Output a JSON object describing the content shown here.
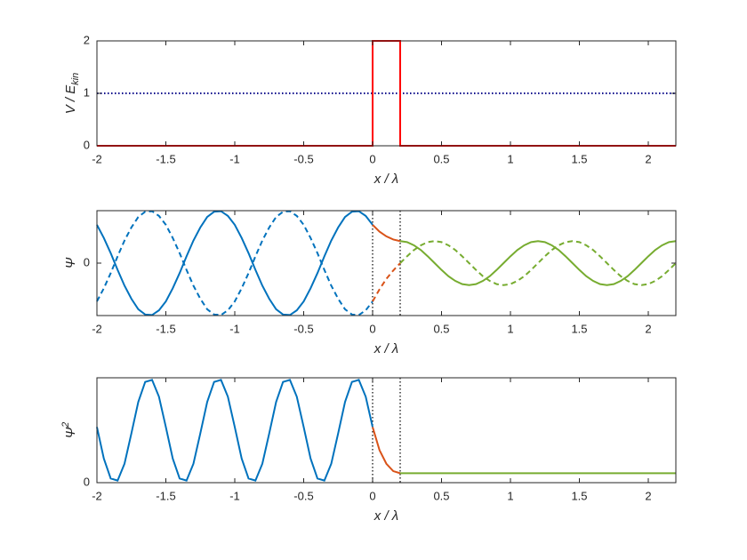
{
  "chart_data": [
    {
      "type": "line",
      "ylabel": [
        "V / E",
        "kin"
      ],
      "xlabel": "x / λ",
      "xlim": [
        -2,
        2.2
      ],
      "xticks": [
        -2,
        -1.5,
        -1,
        -0.5,
        0,
        0.5,
        1,
        1.5,
        2
      ],
      "ylim": [
        0,
        2
      ],
      "yticks": [
        0,
        1,
        2
      ],
      "series": [
        {
          "color": "#00008b",
          "style": "dotted",
          "x": [
            -2,
            2.2
          ],
          "values": [
            1,
            1
          ]
        },
        {
          "color": "#ff0000",
          "style": "solid",
          "x": [
            -2,
            0,
            0,
            0.2,
            0.2,
            2.2
          ],
          "values": [
            0,
            0,
            2,
            2,
            0,
            0
          ]
        }
      ]
    },
    {
      "type": "line",
      "ylabel": [
        "Ψ"
      ],
      "xlabel": "x / λ",
      "xlim": [
        -2,
        2.2
      ],
      "xticks": [
        -2,
        -1.5,
        -1,
        -0.5,
        0,
        0.5,
        1,
        1.5,
        2
      ],
      "ylim": [
        -1,
        1
      ],
      "yticks": [
        0
      ],
      "vlines": [
        0,
        0.2
      ],
      "series": [
        {
          "color": "#0072bd",
          "style": "solid",
          "x": [
            -2,
            -1.95,
            -1.9,
            -1.85,
            -1.8,
            -1.75,
            -1.7,
            -1.65,
            -1.6,
            -1.55,
            -1.5,
            -1.45,
            -1.4,
            -1.35,
            -1.3,
            -1.25,
            -1.2,
            -1.15,
            -1.1,
            -1.05,
            -1,
            -0.95,
            -0.9,
            -0.85,
            -0.8,
            -0.75,
            -0.7,
            -0.65,
            -0.6,
            -0.55,
            -0.5,
            -0.45,
            -0.4,
            -0.35,
            -0.3,
            -0.25,
            -0.2,
            -0.15,
            -0.1,
            -0.05,
            0
          ],
          "values": [
            0.73,
            0.48,
            0.19,
            -0.13,
            -0.43,
            -0.68,
            -0.88,
            -0.98,
            -0.99,
            -0.9,
            -0.73,
            -0.48,
            -0.19,
            0.13,
            0.43,
            0.68,
            0.88,
            0.98,
            0.99,
            0.9,
            0.73,
            0.48,
            0.19,
            -0.13,
            -0.43,
            -0.68,
            -0.88,
            -0.98,
            -0.99,
            -0.9,
            -0.73,
            -0.48,
            -0.19,
            0.13,
            0.43,
            0.68,
            0.88,
            0.98,
            0.99,
            0.9,
            0.73
          ]
        },
        {
          "color": "#0072bd",
          "style": "dashed",
          "x": [
            -2,
            -1.95,
            -1.9,
            -1.85,
            -1.8,
            -1.75,
            -1.7,
            -1.65,
            -1.6,
            -1.55,
            -1.5,
            -1.45,
            -1.4,
            -1.35,
            -1.3,
            -1.25,
            -1.2,
            -1.15,
            -1.1,
            -1.05,
            -1,
            -0.95,
            -0.9,
            -0.85,
            -0.8,
            -0.75,
            -0.7,
            -0.65,
            -0.6,
            -0.55,
            -0.5,
            -0.45,
            -0.4,
            -0.35,
            -0.3,
            -0.25,
            -0.2,
            -0.15,
            -0.1,
            -0.05,
            0
          ],
          "values": [
            -0.73,
            -0.48,
            -0.19,
            0.13,
            0.43,
            0.68,
            0.88,
            0.98,
            0.99,
            0.9,
            0.73,
            0.48,
            0.19,
            -0.13,
            -0.43,
            -0.68,
            -0.88,
            -0.98,
            -0.99,
            -0.9,
            -0.73,
            -0.48,
            -0.19,
            0.13,
            0.43,
            0.68,
            0.88,
            0.98,
            0.99,
            0.9,
            0.73,
            0.48,
            0.19,
            -0.13,
            -0.43,
            -0.68,
            -0.88,
            -0.98,
            -0.99,
            -0.9,
            -0.73
          ]
        },
        {
          "color": "#d95319",
          "style": "solid",
          "x": [
            0,
            0.05,
            0.1,
            0.15,
            0.2
          ],
          "values": [
            0.73,
            0.6,
            0.51,
            0.45,
            0.42
          ]
        },
        {
          "color": "#d95319",
          "style": "dashed",
          "x": [
            0,
            0.05,
            0.1,
            0.15,
            0.2
          ],
          "values": [
            -0.73,
            -0.5,
            -0.3,
            -0.14,
            0
          ]
        },
        {
          "color": "#77ac30",
          "style": "solid",
          "x": [
            0.2,
            0.25,
            0.3,
            0.35,
            0.4,
            0.45,
            0.5,
            0.55,
            0.6,
            0.65,
            0.7,
            0.75,
            0.8,
            0.85,
            0.9,
            0.95,
            1,
            1.05,
            1.1,
            1.15,
            1.2,
            1.25,
            1.3,
            1.35,
            1.4,
            1.45,
            1.5,
            1.55,
            1.6,
            1.65,
            1.7,
            1.75,
            1.8,
            1.85,
            1.9,
            1.95,
            2,
            2.05,
            2.1,
            2.15,
            2.2
          ],
          "values": [
            0.42,
            0.4,
            0.34,
            0.25,
            0.13,
            0,
            -0.13,
            -0.25,
            -0.34,
            -0.4,
            -0.42,
            -0.4,
            -0.34,
            -0.25,
            -0.13,
            0,
            0.13,
            0.25,
            0.34,
            0.4,
            0.42,
            0.4,
            0.34,
            0.25,
            0.13,
            0,
            -0.13,
            -0.25,
            -0.34,
            -0.4,
            -0.42,
            -0.4,
            -0.34,
            -0.25,
            -0.13,
            0,
            0.13,
            0.25,
            0.34,
            0.4,
            0.42
          ]
        },
        {
          "color": "#77ac30",
          "style": "dashed",
          "x": [
            0.2,
            0.25,
            0.3,
            0.35,
            0.4,
            0.45,
            0.5,
            0.55,
            0.6,
            0.65,
            0.7,
            0.75,
            0.8,
            0.85,
            0.9,
            0.95,
            1,
            1.05,
            1.1,
            1.15,
            1.2,
            1.25,
            1.3,
            1.35,
            1.4,
            1.45,
            1.5,
            1.55,
            1.6,
            1.65,
            1.7,
            1.75,
            1.8,
            1.85,
            1.9,
            1.95,
            2,
            2.05,
            2.1,
            2.15,
            2.2
          ],
          "values": [
            0,
            0.13,
            0.25,
            0.34,
            0.4,
            0.42,
            0.4,
            0.34,
            0.25,
            0.13,
            0,
            -0.13,
            -0.25,
            -0.34,
            -0.4,
            -0.42,
            -0.4,
            -0.34,
            -0.25,
            -0.13,
            0,
            0.13,
            0.25,
            0.34,
            0.4,
            0.42,
            0.4,
            0.34,
            0.25,
            0.13,
            0,
            -0.13,
            -0.25,
            -0.34,
            -0.4,
            -0.42,
            -0.4,
            -0.34,
            -0.25,
            -0.13,
            0
          ]
        }
      ]
    },
    {
      "type": "line",
      "ylabel": [
        "Ψ",
        "2"
      ],
      "xlabel": "x / λ",
      "xlim": [
        -2,
        2.2
      ],
      "xticks": [
        -2,
        -1.5,
        -1,
        -0.5,
        0,
        0.5,
        1,
        1.5,
        2
      ],
      "ylim": [
        0,
        1
      ],
      "yticks": [
        0
      ],
      "vlines": [
        0,
        0.2
      ],
      "series": [
        {
          "color": "#0072bd",
          "style": "solid",
          "x": [
            -2,
            -1.95,
            -1.9,
            -1.85,
            -1.8,
            -1.75,
            -1.7,
            -1.65,
            -1.6,
            -1.55,
            -1.5,
            -1.45,
            -1.4,
            -1.35,
            -1.3,
            -1.25,
            -1.2,
            -1.15,
            -1.1,
            -1.05,
            -1,
            -0.95,
            -0.9,
            -0.85,
            -0.8,
            -0.75,
            -0.7,
            -0.65,
            -0.6,
            -0.55,
            -0.5,
            -0.45,
            -0.4,
            -0.35,
            -0.3,
            -0.25,
            -0.2,
            -0.15,
            -0.1,
            -0.05,
            0
          ],
          "values": [
            0.53,
            0.23,
            0.04,
            0.02,
            0.18,
            0.47,
            0.77,
            0.96,
            0.98,
            0.82,
            0.53,
            0.23,
            0.04,
            0.02,
            0.18,
            0.47,
            0.77,
            0.96,
            0.98,
            0.82,
            0.53,
            0.23,
            0.04,
            0.02,
            0.18,
            0.47,
            0.77,
            0.96,
            0.98,
            0.82,
            0.53,
            0.23,
            0.04,
            0.02,
            0.18,
            0.47,
            0.77,
            0.96,
            0.98,
            0.82,
            0.53
          ]
        },
        {
          "color": "#d95319",
          "style": "solid",
          "x": [
            0,
            0.05,
            0.1,
            0.15,
            0.2
          ],
          "values": [
            0.53,
            0.31,
            0.18,
            0.11,
            0.09
          ]
        },
        {
          "color": "#77ac30",
          "style": "solid",
          "x": [
            0.2,
            2.2
          ],
          "values": [
            0.09,
            0.09
          ]
        }
      ]
    }
  ]
}
